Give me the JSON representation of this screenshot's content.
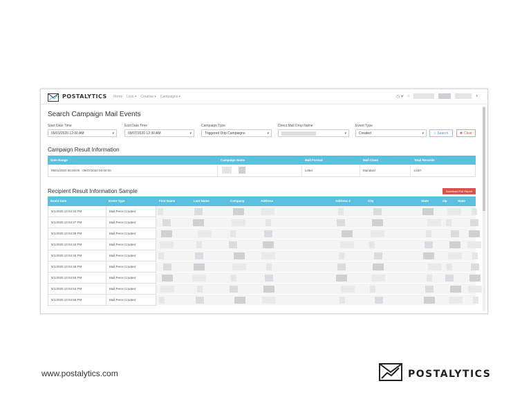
{
  "app": {
    "brand": "POSTALYTICS",
    "nav": [
      "Home",
      "Lists ▾",
      "Creative ▾",
      "Campaigns ▾"
    ]
  },
  "page": {
    "title": "Search Campaign Mail Events"
  },
  "filters": {
    "start_label": "Start Date Time",
    "start_value": "09/01/2020 12:00 AM",
    "end_label": "End Date Time",
    "end_value": "09/07/2020 12:30 AM",
    "campaign_type_label": "Campaign Type",
    "campaign_type_value": "Triggered Drip Campaigns",
    "drop_name_label": "Direct Mail Drop Name",
    "event_type_label": "Event Type",
    "event_type_value": "Created",
    "search_label": "Search",
    "clear_label": "Clear"
  },
  "campaign_result": {
    "title": "Campaign Result Information",
    "columns": [
      "Date Range",
      "Campaign Name",
      "Mail Format",
      "Mail Class",
      "Total Records"
    ],
    "row": {
      "date_range": "09/01/2020 00:00:00 - 09/07/2020 00:00:00",
      "mail_format": "Letter",
      "mail_class": "Standard",
      "total_records": "3,067"
    }
  },
  "recipient": {
    "title": "Recipient Result Information Sample",
    "download_label": "Download Full Report",
    "columns": [
      "Event Date",
      "Event Type",
      "First Name",
      "Last Name",
      "Company",
      "Address",
      "Address 2",
      "City",
      "State",
      "Zip",
      "State"
    ],
    "rows": [
      {
        "date": "9/1/2020 12:04:33 PM",
        "type": "Mail Piece Created"
      },
      {
        "date": "9/1/2020 12:04:37 PM",
        "type": "Mail Piece Created"
      },
      {
        "date": "9/1/2020 12:04:39 PM",
        "type": "Mail Piece Created"
      },
      {
        "date": "9/1/2020 12:04:42 PM",
        "type": "Mail Piece Created"
      },
      {
        "date": "9/1/2020 12:04:45 PM",
        "type": "Mail Piece Created"
      },
      {
        "date": "9/1/2020 12:04:48 PM",
        "type": "Mail Piece Created"
      },
      {
        "date": "9/1/2020 12:04:50 PM",
        "type": "Mail Piece Created"
      },
      {
        "date": "9/1/2020 12:04:53 PM",
        "type": "Mail Piece Created"
      },
      {
        "date": "9/1/2020 12:04:56 PM",
        "type": "Mail Piece Created"
      }
    ]
  },
  "footer": {
    "url": "www.postalytics.com",
    "brand": "POSTALYTICS"
  },
  "colors": {
    "header_blue": "#5bc0de",
    "danger": "#d9534f"
  }
}
